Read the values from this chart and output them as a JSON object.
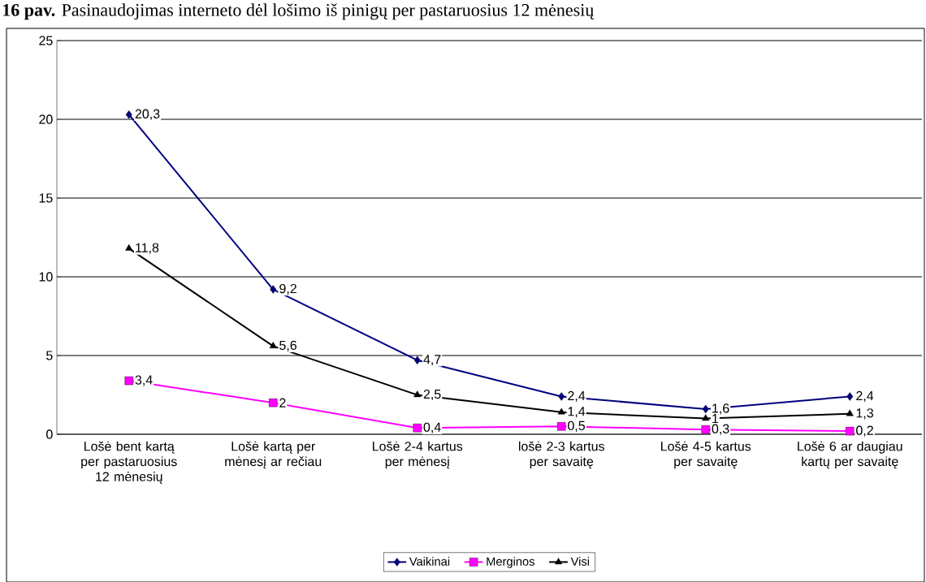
{
  "chart_data": {
    "type": "line",
    "title": "**16 pav.** Pasinaudojimas interneto dėl lošimo iš pinigų per pastaruosius 12 mėnesių",
    "categories": [
      "Lošė bent kartą per pastaruosius 12 mėnesių",
      "Lošė kartą per mėnesį ar rečiau",
      "Lošė 2-4 kartus per mėnesį",
      "lošė 2-3 kartus per savaitę",
      "Lošė 4-5 kartus per savaitę",
      "Lošė 6 ar daugiau kartų per savaitę"
    ],
    "series": [
      {
        "name": "Vaikinai",
        "color": "#000080",
        "marker": "diamond",
        "values": [
          20.3,
          9.2,
          4.7,
          2.4,
          1.6,
          2.4
        ],
        "value_labels": [
          "20,3",
          "9,2",
          "4,7",
          "2,4",
          "1,6",
          "2,4"
        ]
      },
      {
        "name": "Merginos",
        "color": "#ff00ff",
        "marker": "square",
        "values": [
          3.4,
          2,
          0.4,
          0.5,
          0.3,
          0.2
        ],
        "value_labels": [
          "3,4",
          "2",
          "0,4",
          "0,5",
          "0,3",
          "0,2"
        ]
      },
      {
        "name": "Visi",
        "color": "#000000",
        "marker": "triangle",
        "values": [
          11.8,
          5.6,
          2.5,
          1.4,
          1.0,
          1.3
        ],
        "value_labels": [
          "11,8",
          "5,6",
          "2,5",
          "1,4",
          "1",
          "1,3"
        ]
      }
    ],
    "ylim": [
      0,
      25
    ],
    "yticks": [
      0,
      5,
      10,
      15,
      20,
      25
    ],
    "grid": "y",
    "legend": "bottom"
  }
}
